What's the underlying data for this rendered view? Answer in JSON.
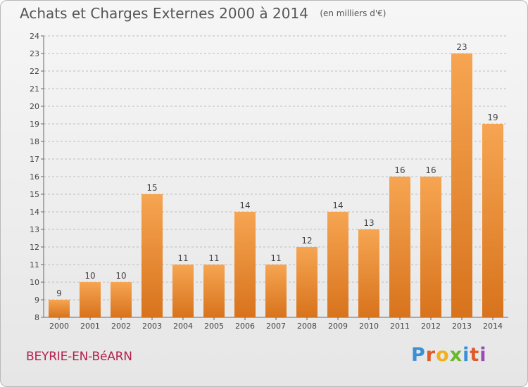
{
  "header": {
    "title": "Achats et Charges Externes 2000 à 2014",
    "unit": "(en milliers d'€)"
  },
  "footer": {
    "commune": "BEYRIE-EN-BéARN",
    "logo": "Proxiti",
    "logo_colors": [
      "#3a8fd6",
      "#e05a2a",
      "#f2b01e",
      "#6ab82e",
      "#3a8fd6",
      "#e05a2a",
      "#9a4bb5"
    ]
  },
  "colors": {
    "bar_top": "#f6a552",
    "bar_bottom": "#d8731c",
    "grid": "#bdbdbd",
    "text": "#444444"
  },
  "chart_data": {
    "type": "bar",
    "title": "Achats et Charges Externes 2000 à 2014",
    "categories": [
      "2000",
      "2001",
      "2002",
      "2003",
      "2004",
      "2005",
      "2006",
      "2007",
      "2008",
      "2009",
      "2010",
      "2011",
      "2012",
      "2013",
      "2014"
    ],
    "values": [
      9,
      10,
      10,
      15,
      11,
      11,
      14,
      11,
      12,
      14,
      13,
      16,
      16,
      23,
      19
    ],
    "ylim": [
      8,
      24
    ],
    "yticks": [
      8,
      9,
      10,
      11,
      12,
      13,
      14,
      15,
      16,
      17,
      18,
      19,
      20,
      21,
      22,
      23,
      24
    ],
    "grid": true,
    "xlabel": "",
    "ylabel": ""
  }
}
